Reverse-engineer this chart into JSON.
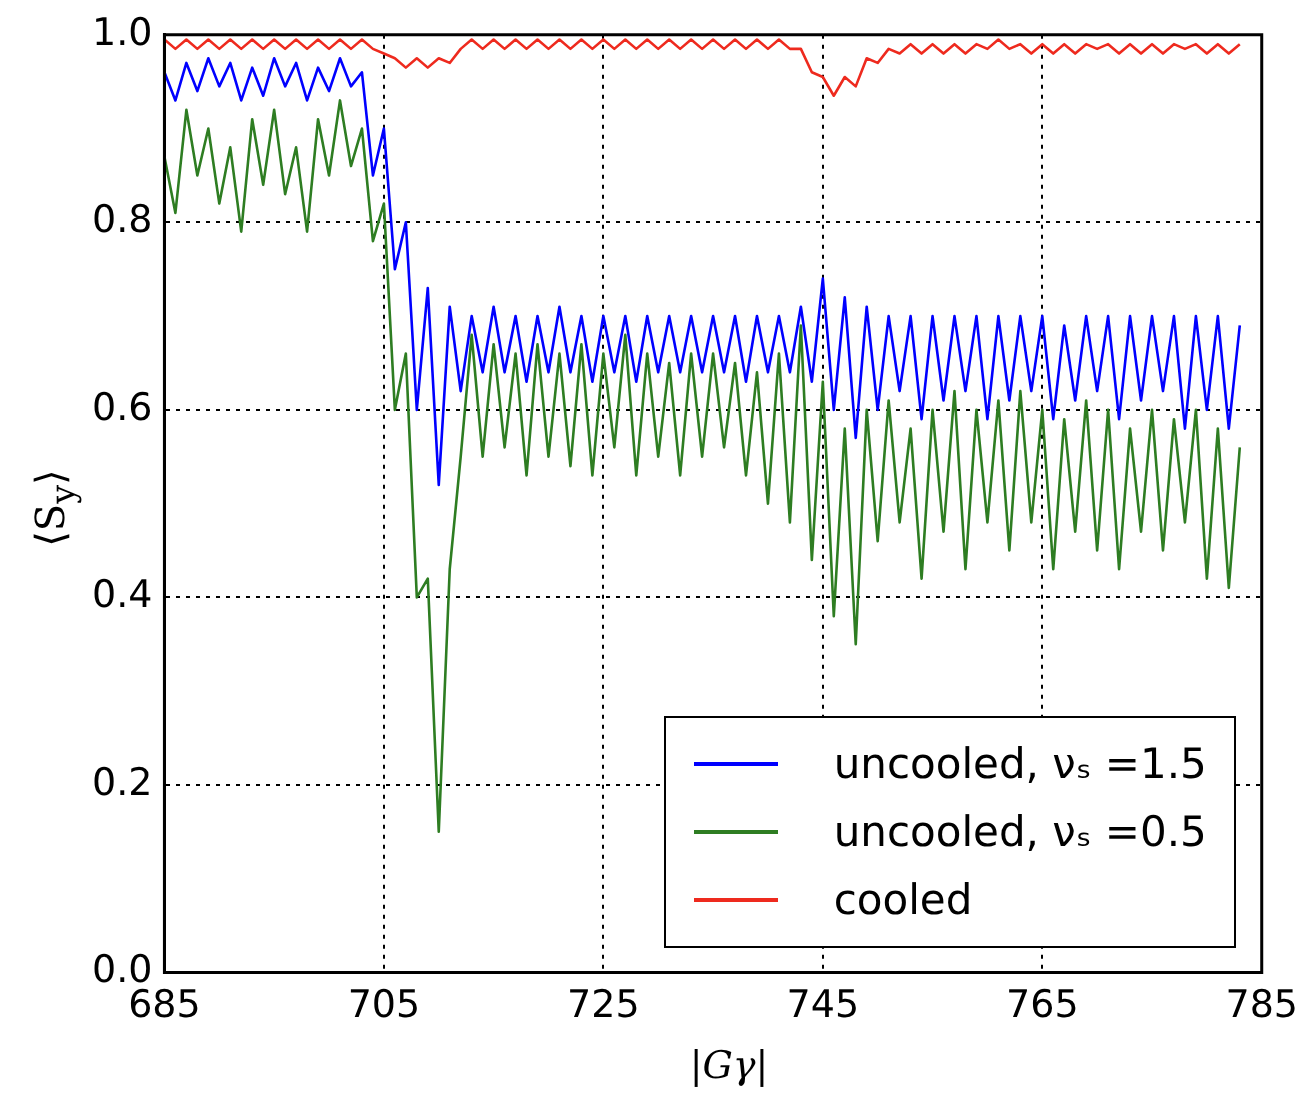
{
  "chart_data": {
    "type": "line",
    "xlabel": "|Gγ|",
    "ylabel": "⟨S$_{y}$⟩",
    "xlim": [
      685,
      785
    ],
    "xticks": [
      685,
      705,
      725,
      745,
      765,
      785
    ],
    "ylim": [
      0,
      1
    ],
    "yticks": [
      {
        "value": 0,
        "label": "0.0"
      },
      {
        "value": 0.2,
        "label": "0.2"
      },
      {
        "value": 0.4,
        "label": "0.4"
      },
      {
        "value": 0.6,
        "label": "0.6"
      },
      {
        "value": 0.8,
        "label": "0.8"
      },
      {
        "value": 1,
        "label": "1.0"
      }
    ],
    "grid": true,
    "legend": "bottom right",
    "marker": "none",
    "line_style": "solid",
    "x": [
      685,
      686,
      687,
      688,
      689,
      690,
      691,
      692,
      693,
      694,
      695,
      696,
      697,
      698,
      699,
      700,
      701,
      702,
      703,
      704,
      705,
      706,
      707,
      708,
      709,
      710,
      711,
      712,
      713,
      714,
      715,
      716,
      717,
      718,
      719,
      720,
      721,
      722,
      723,
      724,
      725,
      726,
      727,
      728,
      729,
      730,
      731,
      732,
      733,
      734,
      735,
      736,
      737,
      738,
      739,
      740,
      741,
      742,
      743,
      744,
      745,
      746,
      747,
      748,
      749,
      750,
      751,
      752,
      753,
      754,
      755,
      756,
      757,
      758,
      759,
      760,
      761,
      762,
      763,
      764,
      765,
      766,
      767,
      768,
      769,
      770,
      771,
      772,
      773,
      774,
      775,
      776,
      777,
      778,
      779,
      780,
      781,
      782,
      783
    ],
    "series": [
      {
        "name": "uncooled, νₛ =1.5",
        "color": "#0000ff",
        "values": [
          0.96,
          0.93,
          0.97,
          0.94,
          0.975,
          0.945,
          0.97,
          0.93,
          0.965,
          0.935,
          0.975,
          0.945,
          0.97,
          0.93,
          0.965,
          0.94,
          0.975,
          0.945,
          0.96,
          0.85,
          0.9,
          0.75,
          0.8,
          0.6,
          0.73,
          0.52,
          0.71,
          0.62,
          0.7,
          0.64,
          0.71,
          0.64,
          0.7,
          0.63,
          0.7,
          0.64,
          0.71,
          0.64,
          0.7,
          0.63,
          0.7,
          0.64,
          0.7,
          0.63,
          0.7,
          0.64,
          0.7,
          0.64,
          0.7,
          0.64,
          0.7,
          0.64,
          0.7,
          0.63,
          0.7,
          0.64,
          0.7,
          0.64,
          0.71,
          0.63,
          0.74,
          0.6,
          0.72,
          0.57,
          0.71,
          0.6,
          0.7,
          0.62,
          0.7,
          0.59,
          0.7,
          0.61,
          0.7,
          0.62,
          0.7,
          0.59,
          0.7,
          0.61,
          0.7,
          0.62,
          0.7,
          0.59,
          0.69,
          0.61,
          0.7,
          0.62,
          0.7,
          0.59,
          0.7,
          0.61,
          0.7,
          0.62,
          0.7,
          0.58,
          0.7,
          0.6,
          0.7,
          0.58,
          0.69
        ]
      },
      {
        "name": "uncooled, νₛ =0.5",
        "color": "#2e7d22",
        "values": [
          0.87,
          0.81,
          0.92,
          0.85,
          0.9,
          0.82,
          0.88,
          0.79,
          0.91,
          0.84,
          0.92,
          0.83,
          0.88,
          0.79,
          0.91,
          0.85,
          0.93,
          0.86,
          0.9,
          0.78,
          0.82,
          0.6,
          0.66,
          0.4,
          0.42,
          0.15,
          0.43,
          0.55,
          0.68,
          0.55,
          0.67,
          0.56,
          0.66,
          0.53,
          0.67,
          0.55,
          0.66,
          0.54,
          0.67,
          0.53,
          0.66,
          0.56,
          0.68,
          0.53,
          0.66,
          0.55,
          0.65,
          0.53,
          0.66,
          0.55,
          0.66,
          0.56,
          0.65,
          0.53,
          0.64,
          0.5,
          0.66,
          0.48,
          0.69,
          0.44,
          0.63,
          0.38,
          0.58,
          0.35,
          0.6,
          0.46,
          0.61,
          0.48,
          0.58,
          0.42,
          0.6,
          0.47,
          0.62,
          0.43,
          0.6,
          0.48,
          0.61,
          0.45,
          0.62,
          0.48,
          0.6,
          0.43,
          0.59,
          0.47,
          0.61,
          0.45,
          0.6,
          0.43,
          0.58,
          0.47,
          0.6,
          0.45,
          0.59,
          0.48,
          0.6,
          0.42,
          0.58,
          0.41,
          0.56
        ]
      },
      {
        "name": "cooled",
        "color": "#ee2a1e",
        "values": [
          0.995,
          0.985,
          0.995,
          0.985,
          0.995,
          0.985,
          0.995,
          0.985,
          0.995,
          0.985,
          0.995,
          0.985,
          0.995,
          0.985,
          0.995,
          0.985,
          0.995,
          0.985,
          0.995,
          0.985,
          0.98,
          0.975,
          0.965,
          0.975,
          0.965,
          0.975,
          0.97,
          0.985,
          0.995,
          0.985,
          0.995,
          0.985,
          0.995,
          0.985,
          0.995,
          0.985,
          0.995,
          0.985,
          0.995,
          0.985,
          0.995,
          0.985,
          0.995,
          0.985,
          0.995,
          0.985,
          0.995,
          0.985,
          0.995,
          0.985,
          0.995,
          0.985,
          0.995,
          0.985,
          0.995,
          0.985,
          0.995,
          0.985,
          0.985,
          0.96,
          0.955,
          0.935,
          0.955,
          0.945,
          0.975,
          0.97,
          0.985,
          0.98,
          0.99,
          0.98,
          0.99,
          0.98,
          0.99,
          0.98,
          0.99,
          0.985,
          0.995,
          0.985,
          0.99,
          0.98,
          0.99,
          0.98,
          0.99,
          0.98,
          0.99,
          0.985,
          0.99,
          0.98,
          0.99,
          0.98,
          0.99,
          0.98,
          0.99,
          0.985,
          0.99,
          0.98,
          0.99,
          0.98,
          0.99
        ]
      }
    ]
  }
}
